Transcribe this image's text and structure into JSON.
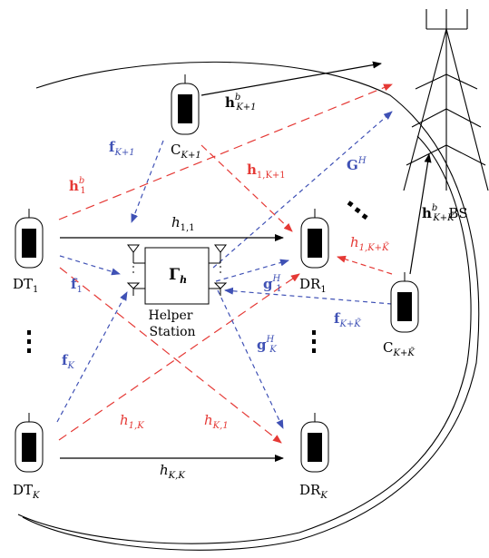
{
  "colors": {
    "black": "#000000",
    "red": "#e53935",
    "blue": "#3f51b5",
    "gray": "#555555"
  },
  "devices": {
    "c_k1": {
      "base": "C",
      "sub": "K+1"
    },
    "dt_1": {
      "base": "DT",
      "sub": "1"
    },
    "dr_1": {
      "base": "DR",
      "sub": "1"
    },
    "dt_k": {
      "base": "DT",
      "sub": "K"
    },
    "dr_k": {
      "base": "DR",
      "sub": "K"
    },
    "c_kt": {
      "base": "C",
      "sub": "K+K̃"
    }
  },
  "helper": {
    "matrix": "Γ",
    "matrix_sub": "h",
    "label_line1": "Helper",
    "label_line2": "Station"
  },
  "bs": {
    "label": "BS"
  },
  "links": {
    "h_bK1": {
      "base": "h",
      "sup": "b",
      "sub": "K+1"
    },
    "f_K1": {
      "base": "f",
      "sub": "K+1"
    },
    "h_1K1": {
      "base": "h",
      "sub": "1,K+1"
    },
    "G_H": {
      "base": "G",
      "sup": "H"
    },
    "h_b1": {
      "base": "h",
      "sup": "b",
      "sub": "1"
    },
    "h_11": {
      "base": "h",
      "sub": "1,1"
    },
    "h_bKt": {
      "base": "h",
      "sup": "b",
      "sub": "K+K̃"
    },
    "h_1Kt": {
      "base": "h",
      "sub": "1,K+K̃"
    },
    "f_1": {
      "base": "f",
      "sub": "1"
    },
    "g_1H": {
      "base": "g",
      "sup": "H",
      "sub": "1"
    },
    "f_Kt": {
      "base": "f",
      "sub": "K+K̃"
    },
    "f_K": {
      "base": "f",
      "sub": "K"
    },
    "g_KH": {
      "base": "g",
      "sup": "H",
      "sub": "K"
    },
    "h_1K": {
      "base": "h",
      "sub": "1,K"
    },
    "h_K1": {
      "base": "h",
      "sub": "K,1"
    },
    "h_KK": {
      "base": "h",
      "sub": "K,K"
    }
  }
}
